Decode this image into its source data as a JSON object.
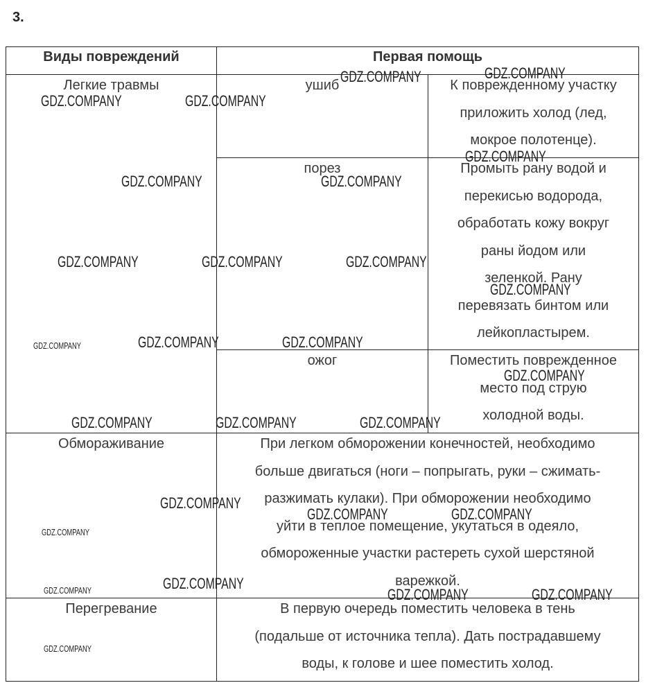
{
  "task_number": "3.",
  "header": {
    "col1": "Виды повреждений",
    "col2": "Первая помощь"
  },
  "rows": {
    "light": {
      "type": "Легкие травмы",
      "sub": [
        {
          "name": "ушиб",
          "aid": "К поврежденному участку\nприложить холод (лед,\nмокрое полотенце)."
        },
        {
          "name": "порез",
          "aid": "Промыть рану водой и\nперекисью водорода,\nобработать кожу вокруг\nраны йодом или\nзеленкой. Рану\nперевязать бинтом или\nлейкопластырем."
        },
        {
          "name": "ожог",
          "aid": "Поместить поврежденное\nместо под струю\nхолодной воды."
        }
      ]
    },
    "frost": {
      "type": "Обмораживание",
      "aid": "При легком обморожении конечностей, необходимо\nбольше двигаться (ноги – попрыгать, руки – сжимать-\nразжимать кулаки). При обморожении необходимо\nуйти в теплое помещение, укутаться в одеяло,\nобмороженные участки растереть сухой шерстяной\nварежкой."
    },
    "heat": {
      "type": "Перегревание",
      "aid": "В первую очередь поместить человека в тень\n(подальше от источника тепла). Дать пострадавшему\nводы, к голове и шее поместить холод."
    }
  },
  "watermark": "GDZ.COMPANY"
}
